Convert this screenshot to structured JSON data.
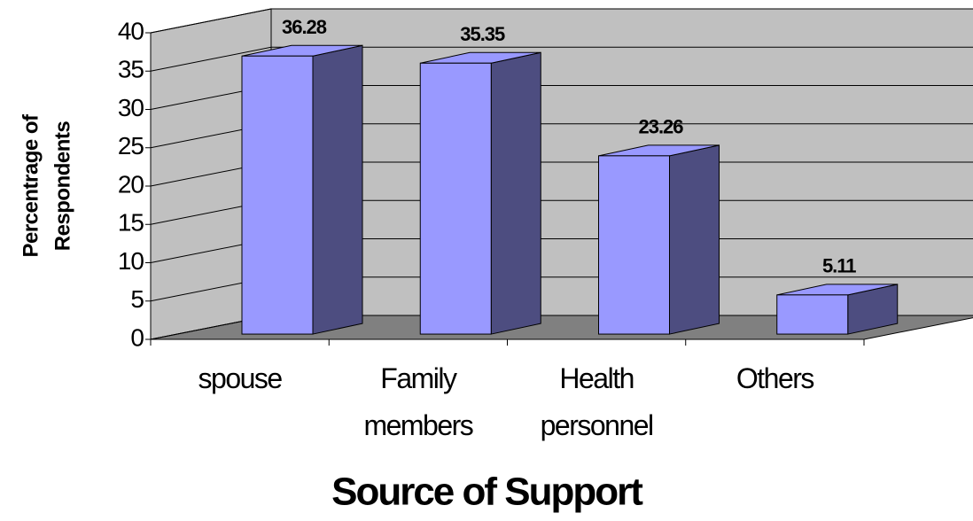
{
  "chart_data": {
    "type": "bar3d",
    "categories": [
      "spouse",
      "Family members",
      "Health personnel",
      "Others"
    ],
    "values": [
      36.28,
      35.35,
      23.26,
      5.11
    ],
    "ylim": [
      0,
      40
    ],
    "yticks": [
      0,
      5,
      10,
      15,
      20,
      25,
      30,
      35,
      40
    ],
    "grid": true,
    "ylabel": [
      "Percentrage of",
      "Respondents"
    ],
    "xlabel": "Source of Support",
    "color": "#9999ff",
    "side_color": "#4d4d80",
    "wall_color": "#c0c0c0",
    "floor_color": "#808080"
  }
}
